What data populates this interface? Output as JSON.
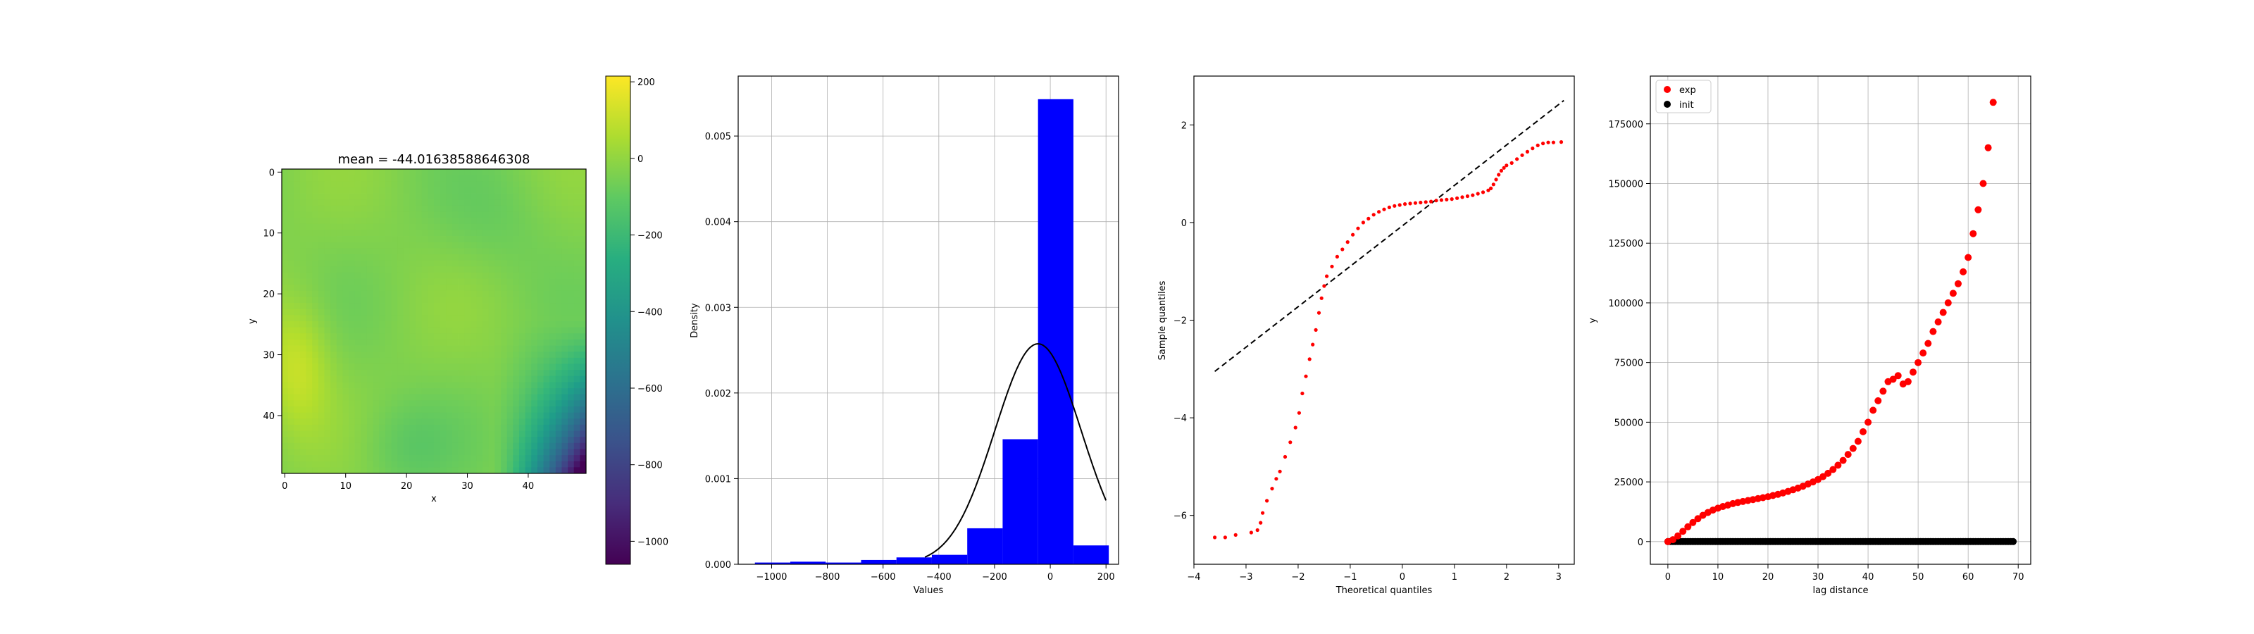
{
  "chart_data": [
    {
      "type": "heatmap",
      "title": "mean = -44.01638588646308",
      "xlabel": "x",
      "ylabel": "y",
      "xticks": [
        0,
        10,
        20,
        30,
        40
      ],
      "yticks": [
        0,
        10,
        20,
        30,
        40
      ],
      "grid_size": [
        50,
        50
      ],
      "colormap": "viridis",
      "colorbar": {
        "range": [
          -1060,
          215
        ],
        "ticks": [
          200,
          0,
          -200,
          -400,
          -600,
          -800,
          -1000
        ]
      },
      "pattern_notes": "mostly yellow-green field; darker teal-to-purple region along right edge rows 25-50"
    },
    {
      "type": "bar",
      "subtype": "histogram",
      "xlabel": "Values",
      "ylabel": "Density",
      "xlim": [
        -1120,
        245
      ],
      "ylim": [
        0,
        0.0057
      ],
      "xticks": [
        -1000,
        -800,
        -600,
        -400,
        -200,
        0,
        200
      ],
      "yticks": [
        0.0,
        0.001,
        0.002,
        0.003,
        0.004,
        0.005
      ],
      "ytick_labels": [
        "0.000",
        "0.001",
        "0.002",
        "0.003",
        "0.004",
        "0.005"
      ],
      "bar_color": "#0000ff",
      "bin_edges": [
        -1060,
        -933,
        -806,
        -679,
        -552,
        -425,
        -298,
        -171,
        -44,
        83,
        210
      ],
      "values": [
        2e-05,
        3e-05,
        2e-05,
        5e-05,
        8e-05,
        0.00011,
        0.00042,
        0.00146,
        0.00543,
        0.00022
      ],
      "curve": {
        "label": "normal pdf",
        "mean": -44.0,
        "std": 155.0,
        "color": "#000000"
      },
      "grid": true
    },
    {
      "type": "scatter",
      "subtype": "qq-plot",
      "xlabel": "Theoretical quantiles",
      "ylabel": "Sample quantiles",
      "xlim": [
        -4,
        3.3
      ],
      "ylim": [
        -7,
        3
      ],
      "xticks": [
        -4,
        -3,
        -2,
        -1,
        0,
        1,
        2,
        3
      ],
      "yticks": [
        -6,
        -4,
        -2,
        0,
        2
      ],
      "reference_line": {
        "x": [
          -3.6,
          3.1
        ],
        "y": [
          -3.05,
          2.5
        ],
        "style": "dashed",
        "color": "#000000"
      },
      "point_color": "#ff0000",
      "points": [
        [
          -3.6,
          -6.45
        ],
        [
          -3.4,
          -6.45
        ],
        [
          -3.2,
          -6.4
        ],
        [
          -2.9,
          -6.35
        ],
        [
          -2.78,
          -6.3
        ],
        [
          -2.72,
          -6.15
        ],
        [
          -2.68,
          -5.95
        ],
        [
          -2.6,
          -5.7
        ],
        [
          -2.5,
          -5.45
        ],
        [
          -2.42,
          -5.25
        ],
        [
          -2.35,
          -5.1
        ],
        [
          -2.25,
          -4.8
        ],
        [
          -2.15,
          -4.5
        ],
        [
          -2.05,
          -4.2
        ],
        [
          -1.98,
          -3.9
        ],
        [
          -1.92,
          -3.5
        ],
        [
          -1.85,
          -3.15
        ],
        [
          -1.78,
          -2.8
        ],
        [
          -1.72,
          -2.5
        ],
        [
          -1.66,
          -2.2
        ],
        [
          -1.6,
          -1.85
        ],
        [
          -1.55,
          -1.55
        ],
        [
          -1.5,
          -1.3
        ],
        [
          -1.45,
          -1.1
        ],
        [
          -1.35,
          -0.9
        ],
        [
          -1.25,
          -0.7
        ],
        [
          -1.15,
          -0.55
        ],
        [
          -1.05,
          -0.4
        ],
        [
          -0.95,
          -0.25
        ],
        [
          -0.85,
          -0.12
        ],
        [
          -0.75,
          0.0
        ],
        [
          -0.65,
          0.08
        ],
        [
          -0.55,
          0.16
        ],
        [
          -0.45,
          0.22
        ],
        [
          -0.35,
          0.27
        ],
        [
          -0.25,
          0.31
        ],
        [
          -0.15,
          0.34
        ],
        [
          -0.05,
          0.36
        ],
        [
          0.05,
          0.38
        ],
        [
          0.15,
          0.39
        ],
        [
          0.25,
          0.4
        ],
        [
          0.35,
          0.41
        ],
        [
          0.45,
          0.42
        ],
        [
          0.55,
          0.43
        ],
        [
          0.65,
          0.45
        ],
        [
          0.75,
          0.46
        ],
        [
          0.85,
          0.47
        ],
        [
          0.95,
          0.48
        ],
        [
          1.05,
          0.5
        ],
        [
          1.15,
          0.52
        ],
        [
          1.25,
          0.54
        ],
        [
          1.35,
          0.56
        ],
        [
          1.45,
          0.59
        ],
        [
          1.55,
          0.62
        ],
        [
          1.65,
          0.66
        ],
        [
          1.7,
          0.7
        ],
        [
          1.75,
          0.78
        ],
        [
          1.8,
          0.88
        ],
        [
          1.85,
          0.98
        ],
        [
          1.9,
          1.06
        ],
        [
          1.95,
          1.12
        ],
        [
          2.0,
          1.17
        ],
        [
          2.1,
          1.22
        ],
        [
          2.2,
          1.3
        ],
        [
          2.3,
          1.38
        ],
        [
          2.4,
          1.45
        ],
        [
          2.5,
          1.52
        ],
        [
          2.6,
          1.58
        ],
        [
          2.7,
          1.62
        ],
        [
          2.8,
          1.64
        ],
        [
          2.9,
          1.64
        ],
        [
          3.05,
          1.65
        ]
      ],
      "grid": false
    },
    {
      "type": "scatter",
      "subtype": "variogram",
      "xlabel": "lag distance",
      "ylabel": "y",
      "xlim": [
        -3.5,
        72.5
      ],
      "ylim": [
        -9500,
        195000
      ],
      "xticks": [
        0,
        10,
        20,
        30,
        40,
        50,
        60,
        70
      ],
      "yticks": [
        0,
        25000,
        50000,
        75000,
        100000,
        125000,
        150000,
        175000
      ],
      "legend": {
        "position": "top-left",
        "entries": [
          "exp",
          "init"
        ]
      },
      "series": [
        {
          "name": "exp",
          "color": "#ff0000",
          "points": [
            [
              0,
              0
            ],
            [
              1,
              800
            ],
            [
              2,
              2400
            ],
            [
              3,
              4300
            ],
            [
              4,
              6200
            ],
            [
              5,
              8000
            ],
            [
              6,
              9600
            ],
            [
              7,
              11000
            ],
            [
              8,
              12200
            ],
            [
              9,
              13200
            ],
            [
              10,
              14000
            ],
            [
              11,
              14700
            ],
            [
              12,
              15300
            ],
            [
              13,
              15900
            ],
            [
              14,
              16400
            ],
            [
              15,
              16800
            ],
            [
              16,
              17200
            ],
            [
              17,
              17600
            ],
            [
              18,
              18000
            ],
            [
              19,
              18400
            ],
            [
              20,
              18800
            ],
            [
              21,
              19300
            ],
            [
              22,
              19800
            ],
            [
              23,
              20400
            ],
            [
              24,
              21000
            ],
            [
              25,
              21700
            ],
            [
              26,
              22400
            ],
            [
              27,
              23200
            ],
            [
              28,
              24100
            ],
            [
              29,
              25000
            ],
            [
              30,
              26000
            ],
            [
              31,
              27200
            ],
            [
              32,
              28600
            ],
            [
              33,
              30200
            ],
            [
              34,
              32000
            ],
            [
              35,
              34000
            ],
            [
              36,
              36500
            ],
            [
              37,
              39000
            ],
            [
              38,
              42000
            ],
            [
              39,
              46000
            ],
            [
              40,
              50000
            ],
            [
              41,
              55000
            ],
            [
              42,
              59000
            ],
            [
              43,
              63000
            ],
            [
              44,
              67000
            ],
            [
              45,
              68000
            ],
            [
              46,
              69500
            ],
            [
              47,
              66000
            ],
            [
              48,
              67000
            ],
            [
              49,
              71000
            ],
            [
              50,
              75000
            ],
            [
              51,
              79000
            ],
            [
              52,
              83000
            ],
            [
              53,
              88000
            ],
            [
              54,
              92000
            ],
            [
              55,
              96000
            ],
            [
              56,
              100000
            ],
            [
              57,
              104000
            ],
            [
              58,
              108000
            ],
            [
              59,
              113000
            ],
            [
              60,
              119000
            ],
            [
              61,
              129000
            ],
            [
              62,
              139000
            ],
            [
              63,
              150000
            ],
            [
              64,
              165000
            ],
            [
              65,
              184000
            ]
          ]
        },
        {
          "name": "init",
          "color": "#000000",
          "x_range": [
            0,
            69
          ],
          "value": 0
        }
      ],
      "grid": true
    }
  ]
}
